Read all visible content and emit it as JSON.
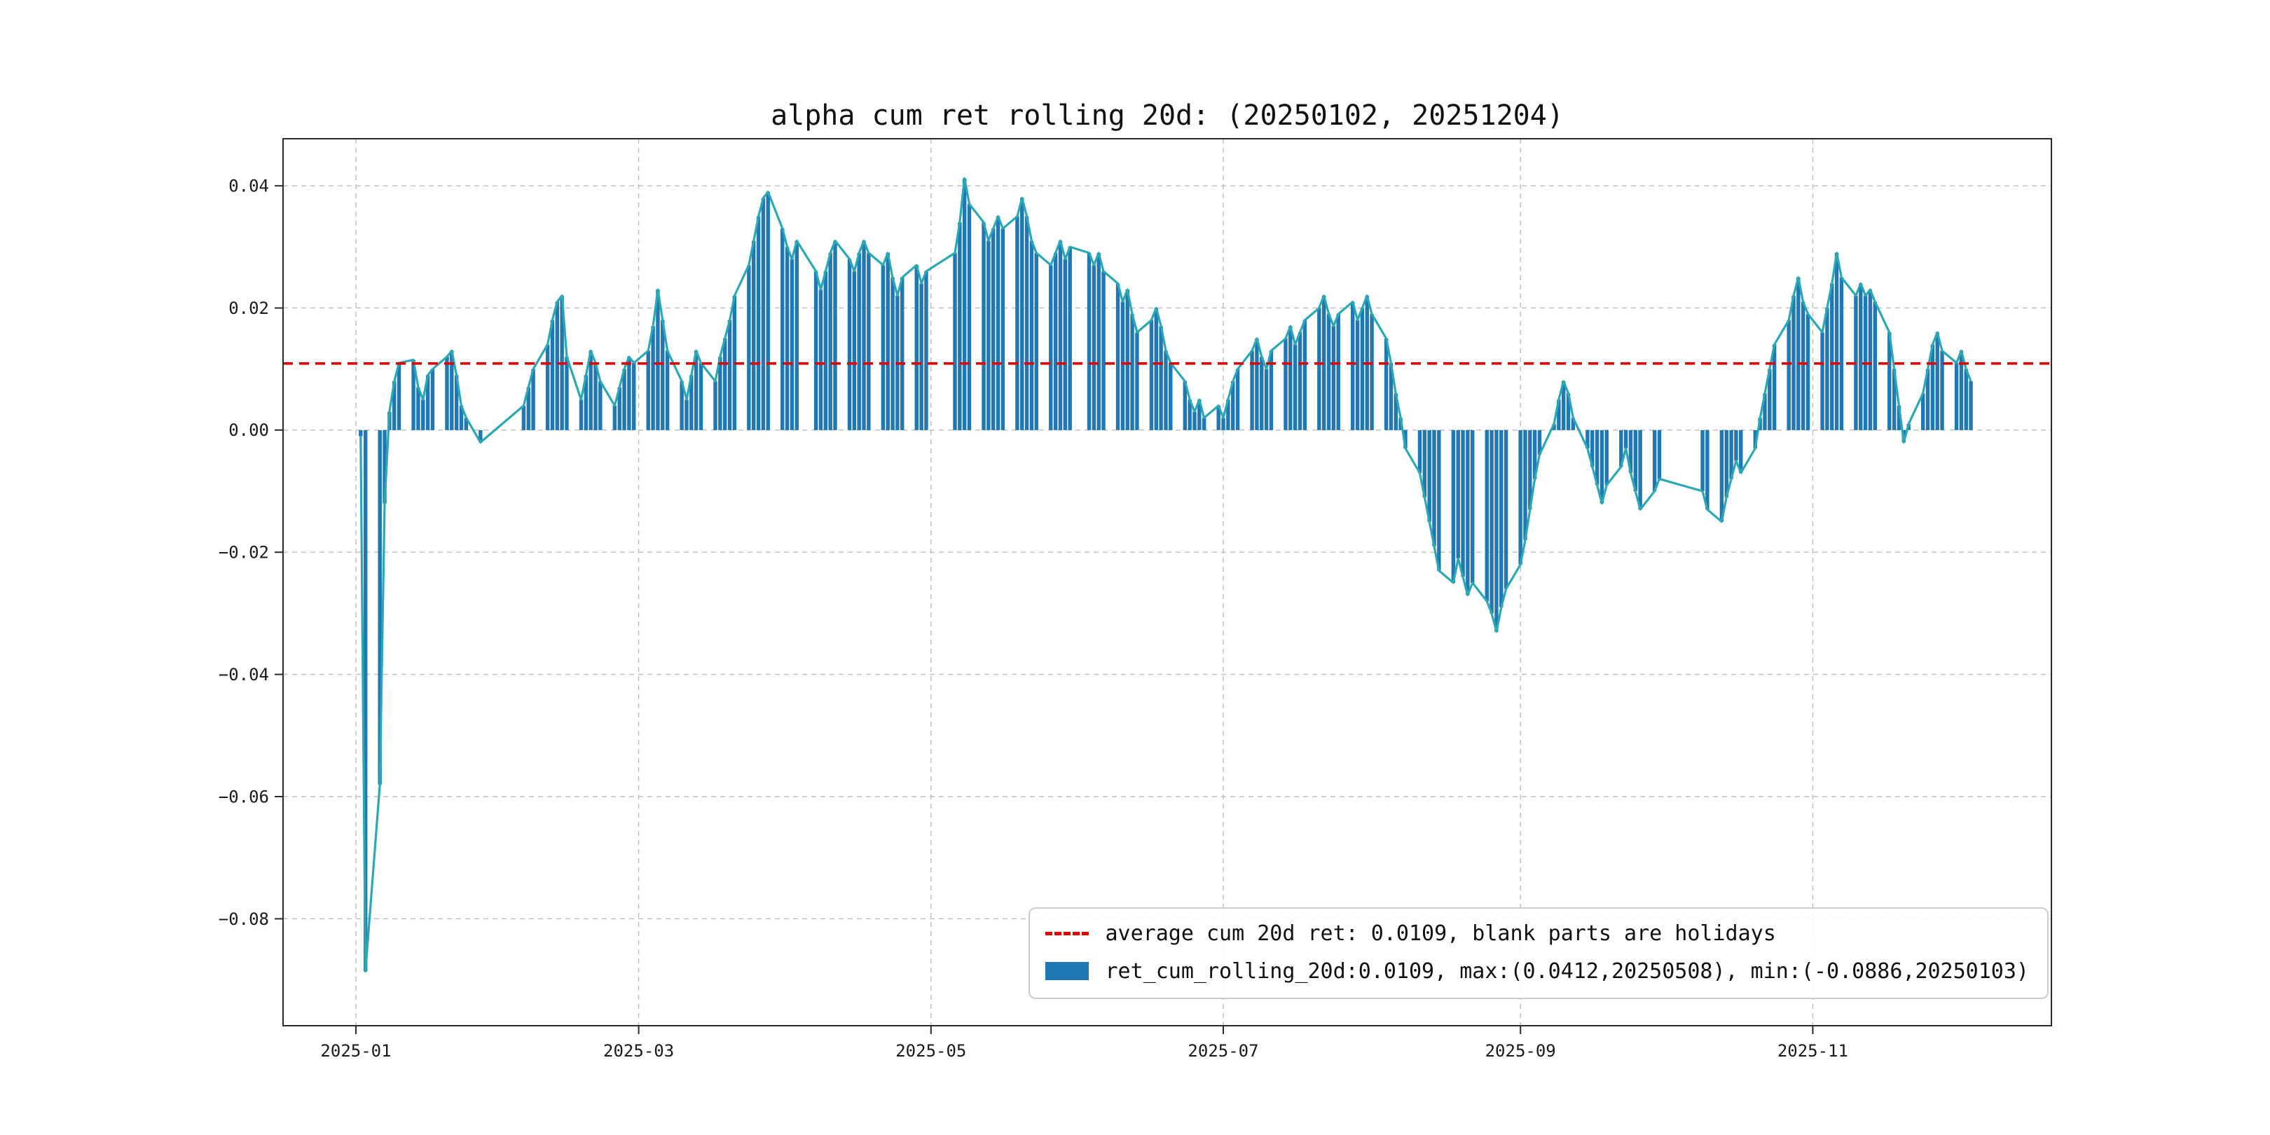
{
  "chart_data": {
    "type": "bar",
    "line_overlay": true,
    "title": "alpha cum ret rolling 20d: (20250102, 20251204)",
    "xlabel": "",
    "ylabel": "",
    "date_range": [
      "20250102",
      "20251204"
    ],
    "average": 0.0109,
    "max": {
      "value": 0.0412,
      "date": "20250508"
    },
    "min": {
      "value": -0.0886,
      "date": "20250103"
    },
    "ylim": [
      -0.0975,
      0.0477
    ],
    "grid": true,
    "legend_position": "lower right",
    "colors": {
      "bar": "#1f77b4",
      "line": "#2aa8b4",
      "average": "#e50000",
      "grid": "#bdbdbd",
      "spine": "#2a2a2a"
    },
    "x_ticks": [
      "2025-01",
      "2025-03",
      "2025-05",
      "2025-07",
      "2025-09",
      "2025-11"
    ],
    "y_ticks": [
      {
        "value": 0.04,
        "label": "0.04"
      },
      {
        "value": 0.02,
        "label": "0.02"
      },
      {
        "value": 0.0,
        "label": "0.00"
      },
      {
        "value": -0.02,
        "label": "−0.02"
      },
      {
        "value": -0.04,
        "label": "−0.04"
      },
      {
        "value": -0.06,
        "label": "−0.06"
      },
      {
        "value": -0.08,
        "label": "−0.08"
      }
    ],
    "legend": [
      {
        "sample": "red-dashed-line",
        "label": "average cum 20d ret: 0.0109, blank parts are holidays"
      },
      {
        "sample": "blue-bar-patch",
        "label": "ret_cum_rolling_20d:0.0109, max:(0.0412,20250508), min:(-0.0886,20250103)"
      }
    ],
    "series": [
      {
        "name": "ret_cum_rolling_20d",
        "dates": [
          "2025-01-02",
          "2025-01-03",
          "2025-01-06",
          "2025-01-07",
          "2025-01-08",
          "2025-01-09",
          "2025-01-10",
          "2025-01-13",
          "2025-01-14",
          "2025-01-15",
          "2025-01-16",
          "2025-01-17",
          "2025-01-20",
          "2025-01-21",
          "2025-01-22",
          "2025-01-23",
          "2025-01-24",
          "2025-01-27",
          "2025-02-05",
          "2025-02-06",
          "2025-02-07",
          "2025-02-10",
          "2025-02-11",
          "2025-02-12",
          "2025-02-13",
          "2025-02-14",
          "2025-02-17",
          "2025-02-18",
          "2025-02-19",
          "2025-02-20",
          "2025-02-21",
          "2025-02-24",
          "2025-02-25",
          "2025-02-26",
          "2025-02-27",
          "2025-02-28",
          "2025-03-03",
          "2025-03-04",
          "2025-03-05",
          "2025-03-06",
          "2025-03-07",
          "2025-03-10",
          "2025-03-11",
          "2025-03-12",
          "2025-03-13",
          "2025-03-14",
          "2025-03-17",
          "2025-03-18",
          "2025-03-19",
          "2025-03-20",
          "2025-03-21",
          "2025-03-24",
          "2025-03-25",
          "2025-03-26",
          "2025-03-27",
          "2025-03-28",
          "2025-03-31",
          "2025-04-01",
          "2025-04-02",
          "2025-04-03",
          "2025-04-07",
          "2025-04-08",
          "2025-04-09",
          "2025-04-10",
          "2025-04-11",
          "2025-04-14",
          "2025-04-15",
          "2025-04-16",
          "2025-04-17",
          "2025-04-18",
          "2025-04-21",
          "2025-04-22",
          "2025-04-23",
          "2025-04-24",
          "2025-04-25",
          "2025-04-28",
          "2025-04-29",
          "2025-04-30",
          "2025-05-06",
          "2025-05-07",
          "2025-05-08",
          "2025-05-09",
          "2025-05-12",
          "2025-05-13",
          "2025-05-14",
          "2025-05-15",
          "2025-05-16",
          "2025-05-19",
          "2025-05-20",
          "2025-05-21",
          "2025-05-22",
          "2025-05-23",
          "2025-05-26",
          "2025-05-27",
          "2025-05-28",
          "2025-05-29",
          "2025-05-30",
          "2025-06-03",
          "2025-06-04",
          "2025-06-05",
          "2025-06-06",
          "2025-06-09",
          "2025-06-10",
          "2025-06-11",
          "2025-06-12",
          "2025-06-13",
          "2025-06-16",
          "2025-06-17",
          "2025-06-18",
          "2025-06-19",
          "2025-06-20",
          "2025-06-23",
          "2025-06-24",
          "2025-06-25",
          "2025-06-26",
          "2025-06-27",
          "2025-06-30",
          "2025-07-01",
          "2025-07-02",
          "2025-07-03",
          "2025-07-04",
          "2025-07-07",
          "2025-07-08",
          "2025-07-09",
          "2025-07-10",
          "2025-07-11",
          "2025-07-14",
          "2025-07-15",
          "2025-07-16",
          "2025-07-17",
          "2025-07-18",
          "2025-07-21",
          "2025-07-22",
          "2025-07-23",
          "2025-07-24",
          "2025-07-25",
          "2025-07-28",
          "2025-07-29",
          "2025-07-30",
          "2025-07-31",
          "2025-08-01",
          "2025-08-04",
          "2025-08-05",
          "2025-08-06",
          "2025-08-07",
          "2025-08-08",
          "2025-08-11",
          "2025-08-12",
          "2025-08-13",
          "2025-08-14",
          "2025-08-15",
          "2025-08-18",
          "2025-08-19",
          "2025-08-20",
          "2025-08-21",
          "2025-08-22",
          "2025-08-25",
          "2025-08-26",
          "2025-08-27",
          "2025-08-28",
          "2025-08-29",
          "2025-09-01",
          "2025-09-02",
          "2025-09-03",
          "2025-09-04",
          "2025-09-05",
          "2025-09-08",
          "2025-09-09",
          "2025-09-10",
          "2025-09-11",
          "2025-09-12",
          "2025-09-15",
          "2025-09-16",
          "2025-09-17",
          "2025-09-18",
          "2025-09-19",
          "2025-09-22",
          "2025-09-23",
          "2025-09-24",
          "2025-09-25",
          "2025-09-26",
          "2025-09-29",
          "2025-09-30",
          "2025-10-09",
          "2025-10-10",
          "2025-10-13",
          "2025-10-14",
          "2025-10-15",
          "2025-10-16",
          "2025-10-17",
          "2025-10-20",
          "2025-10-21",
          "2025-10-22",
          "2025-10-23",
          "2025-10-24",
          "2025-10-27",
          "2025-10-28",
          "2025-10-29",
          "2025-10-30",
          "2025-10-31",
          "2025-11-03",
          "2025-11-04",
          "2025-11-05",
          "2025-11-06",
          "2025-11-07",
          "2025-11-10",
          "2025-11-11",
          "2025-11-12",
          "2025-11-13",
          "2025-11-14",
          "2025-11-17",
          "2025-11-18",
          "2025-11-19",
          "2025-11-20",
          "2025-11-21",
          "2025-11-24",
          "2025-11-25",
          "2025-11-26",
          "2025-11-27",
          "2025-11-28",
          "2025-12-01",
          "2025-12-02",
          "2025-12-03",
          "2025-12-04"
        ],
        "values": [
          -0.001,
          -0.0886,
          -0.058,
          -0.012,
          0.003,
          0.008,
          0.011,
          0.0115,
          0.007,
          0.005,
          0.009,
          0.01,
          0.012,
          0.013,
          0.009,
          0.004,
          0.002,
          -0.002,
          0.004,
          0.007,
          0.01,
          0.014,
          0.018,
          0.021,
          0.022,
          0.012,
          0.005,
          0.009,
          0.013,
          0.011,
          0.008,
          0.004,
          0.007,
          0.01,
          0.012,
          0.011,
          0.013,
          0.017,
          0.023,
          0.018,
          0.013,
          0.008,
          0.005,
          0.009,
          0.013,
          0.011,
          0.008,
          0.012,
          0.015,
          0.018,
          0.022,
          0.027,
          0.031,
          0.035,
          0.038,
          0.039,
          0.033,
          0.03,
          0.028,
          0.031,
          0.026,
          0.023,
          0.026,
          0.029,
          0.031,
          0.028,
          0.026,
          0.029,
          0.031,
          0.029,
          0.027,
          0.029,
          0.025,
          0.022,
          0.025,
          0.027,
          0.024,
          0.026,
          0.029,
          0.034,
          0.0412,
          0.037,
          0.034,
          0.031,
          0.033,
          0.035,
          0.033,
          0.035,
          0.038,
          0.035,
          0.031,
          0.029,
          0.027,
          0.029,
          0.031,
          0.028,
          0.03,
          0.029,
          0.027,
          0.029,
          0.026,
          0.024,
          0.021,
          0.023,
          0.019,
          0.016,
          0.018,
          0.02,
          0.017,
          0.013,
          0.011,
          0.008,
          0.005,
          0.003,
          0.005,
          0.002,
          0.004,
          0.002,
          0.005,
          0.008,
          0.01,
          0.013,
          0.015,
          0.012,
          0.01,
          0.013,
          0.015,
          0.017,
          0.014,
          0.016,
          0.018,
          0.02,
          0.022,
          0.019,
          0.017,
          0.019,
          0.021,
          0.018,
          0.02,
          0.022,
          0.019,
          0.015,
          0.011,
          0.006,
          0.002,
          -0.003,
          -0.007,
          -0.011,
          -0.015,
          -0.019,
          -0.023,
          -0.025,
          -0.021,
          -0.024,
          -0.027,
          -0.025,
          -0.028,
          -0.03,
          -0.033,
          -0.029,
          -0.026,
          -0.022,
          -0.018,
          -0.013,
          -0.008,
          -0.004,
          0.001,
          0.005,
          0.008,
          0.006,
          0.002,
          -0.003,
          -0.006,
          -0.009,
          -0.012,
          -0.009,
          -0.006,
          -0.003,
          -0.007,
          -0.01,
          -0.013,
          -0.01,
          -0.008,
          -0.01,
          -0.013,
          -0.015,
          -0.011,
          -0.008,
          -0.005,
          -0.007,
          -0.003,
          0.002,
          0.006,
          0.01,
          0.014,
          0.018,
          0.022,
          0.025,
          0.021,
          0.019,
          0.016,
          0.02,
          0.024,
          0.029,
          0.025,
          0.022,
          0.024,
          0.022,
          0.023,
          0.021,
          0.016,
          0.01,
          0.004,
          -0.002,
          0.001,
          0.006,
          0.01,
          0.014,
          0.016,
          0.013,
          0.011,
          0.013,
          0.01,
          0.008
        ]
      }
    ]
  }
}
